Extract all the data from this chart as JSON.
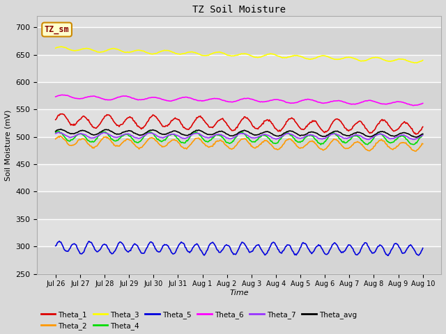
{
  "title": "TZ Soil Moisture",
  "xlabel": "Time",
  "ylabel": "Soil Moisture (mV)",
  "ylim": [
    250,
    720
  ],
  "yticks": [
    250,
    300,
    350,
    400,
    450,
    500,
    550,
    600,
    650,
    700
  ],
  "background_color": "#d9d9d9",
  "plot_bg_color": "#e0e0e0",
  "legend_label": "TZ_sm",
  "series": [
    {
      "name": "Theta_1",
      "color": "#dd0000",
      "mean": 530,
      "amp": 10,
      "freq": 16,
      "phase": 0.0,
      "trend": -0.8
    },
    {
      "name": "Theta_2",
      "color": "#ff9900",
      "mean": 491,
      "amp": 8,
      "freq": 16,
      "phase": 0.5,
      "trend": -0.5
    },
    {
      "name": "Theta_3",
      "color": "#ffff00",
      "mean": 661,
      "amp": 3,
      "freq": 14,
      "phase": 0.3,
      "trend": -1.5
    },
    {
      "name": "Theta_4",
      "color": "#00dd00",
      "mean": 500,
      "amp": 8,
      "freq": 16,
      "phase": 1.0,
      "trend": -0.3
    },
    {
      "name": "Theta_5",
      "color": "#0000dd",
      "mean": 298,
      "amp": 9,
      "freq": 24,
      "phase": 0.2,
      "trend": -0.2
    },
    {
      "name": "Theta_6",
      "color": "#ff00ff",
      "mean": 573,
      "amp": 3,
      "freq": 12,
      "phase": 0.1,
      "trend": -0.8
    },
    {
      "name": "Theta_7",
      "color": "#9933ff",
      "mean": 503,
      "amp": 4,
      "freq": 16,
      "phase": 0.8,
      "trend": -0.2
    },
    {
      "name": "Theta_avg",
      "color": "#000000",
      "mean": 509,
      "amp": 4,
      "freq": 16,
      "phase": 0.3,
      "trend": -0.3
    }
  ],
  "xtick_labels": [
    "Jul 26",
    "Jul 27",
    "Jul 28",
    "Jul 29",
    "Jul 30",
    "Jul 31",
    "Aug 1",
    "Aug 2",
    "Aug 3",
    "Aug 4",
    "Aug 5",
    "Aug 6",
    "Aug 7",
    "Aug 8",
    "Aug 9",
    "Aug 10"
  ],
  "n_points": 480,
  "figsize": [
    6.4,
    4.8
  ],
  "dpi": 100
}
